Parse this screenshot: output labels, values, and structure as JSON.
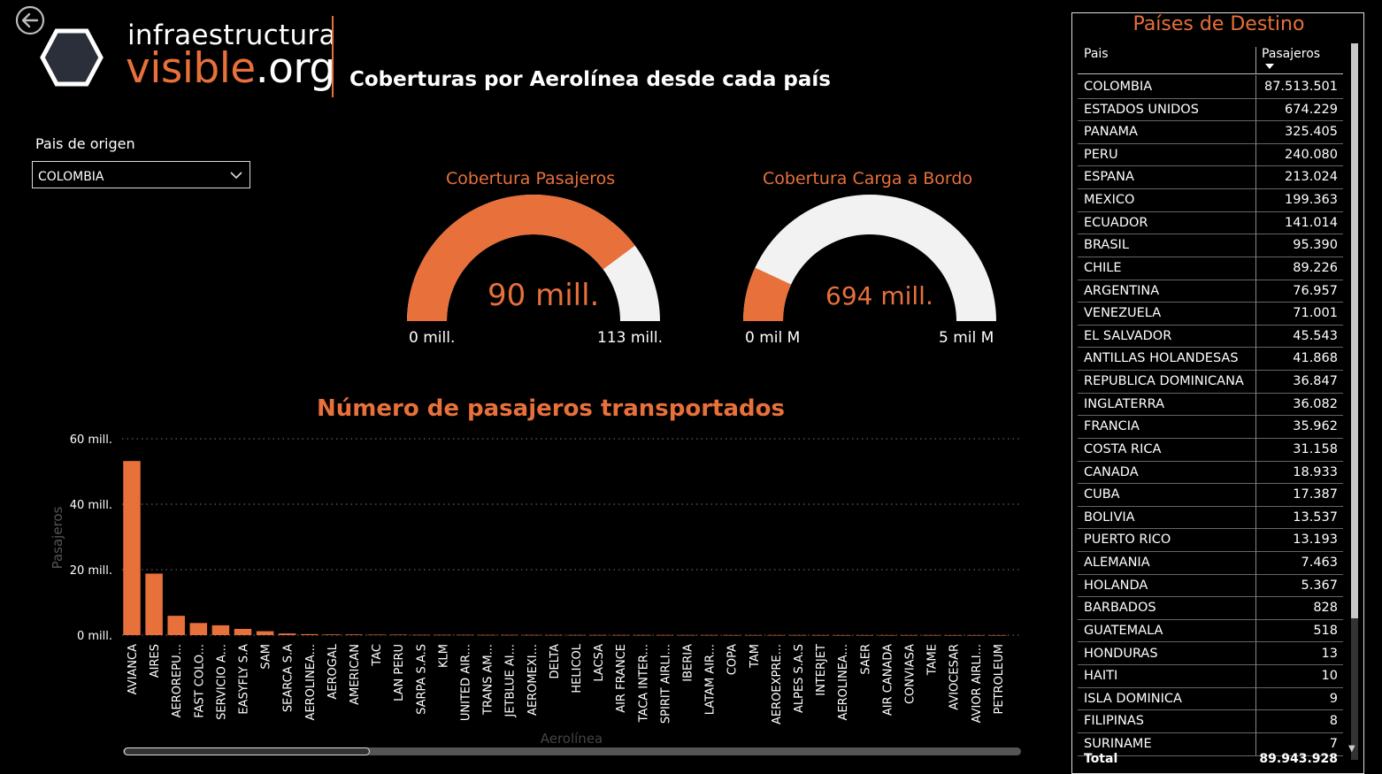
{
  "header": {
    "logo_line1": "infraestructura",
    "logo_line2_a": "visible",
    "logo_line2_b": ".org",
    "title": "Coberturas por Aerolínea desde cada país"
  },
  "filter": {
    "label": "Pais de origen",
    "selected": "COLOMBIA"
  },
  "gauges": [
    {
      "title": "Cobertura Pasajeros",
      "value_label": "90 mill.",
      "min_label": "0 mill.",
      "max_label": "113 mill.",
      "value": 90,
      "max": 113
    },
    {
      "title": "Cobertura Carga a Bordo",
      "value_label": "694 mill.",
      "min_label": "0 mil M",
      "max_label": "5 mil M",
      "value": 0.694,
      "max": 5
    }
  ],
  "colors": {
    "accent": "#e8703a",
    "gauge_bg": "#f2f2f2",
    "grid": "#777777"
  },
  "chart_data": {
    "type": "bar",
    "title": "Número de pasajeros transportados",
    "xlabel": "Aerolínea",
    "ylabel": "Pasajeros",
    "ylim": [
      0,
      60
    ],
    "y_ticks": [
      0,
      20,
      40,
      60
    ],
    "y_tick_labels": [
      "0 mill.",
      "20 mill.",
      "40 mill.",
      "60 mill."
    ],
    "categories": [
      "AVIANCA",
      "AIRES",
      "AEROREPU...",
      "FAST COLO...",
      "SERVICIO A...",
      "EASYFLY S.A",
      "SAM",
      "SEARCA S.A",
      "AEROLINEA...",
      "AEROGAL",
      "AMERICAN",
      "TAC",
      "LAN PERU",
      "SARPA S.A.S",
      "KLM",
      "UNITED AIR...",
      "TRANS AM...",
      "JETBLUE AI...",
      "AEROMEXI...",
      "DELTA",
      "HELICOL",
      "LACSA",
      "AIR FRANCE",
      "TACA INTER...",
      "SPIRIT AIRLI...",
      "IBERIA",
      "LATAM AIR...",
      "COPA",
      "TAM",
      "AEROEXPRE...",
      "ALPES S.A.S",
      "INTERJET",
      "AEROLINEA...",
      "SAER",
      "AIR CANADA",
      "CONVIASA",
      "TAME",
      "AVIOCESAR",
      "AVIOR AIRLI...",
      "PETROLEUM"
    ],
    "values": [
      53.2,
      18.8,
      5.9,
      3.7,
      3.0,
      1.9,
      1.2,
      0.5,
      0.3,
      0.2,
      0.2,
      0.15,
      0.15,
      0.1,
      0.1,
      0.1,
      0.08,
      0.08,
      0.07,
      0.06,
      0.06,
      0.05,
      0.05,
      0.05,
      0.04,
      0.04,
      0.04,
      0.03,
      0.03,
      0.03,
      0.03,
      0.02,
      0.02,
      0.02,
      0.02,
      0.02,
      0.02,
      0.01,
      0.01,
      0.01
    ]
  },
  "table": {
    "title": "Países de Destino",
    "col1": "Pais",
    "col2": "Pasajeros",
    "rows": [
      {
        "pais": "COLOMBIA",
        "pasajeros": "87.513.501"
      },
      {
        "pais": "ESTADOS UNIDOS",
        "pasajeros": "674.229"
      },
      {
        "pais": "PANAMA",
        "pasajeros": "325.405"
      },
      {
        "pais": "PERU",
        "pasajeros": "240.080"
      },
      {
        "pais": "ESPANA",
        "pasajeros": "213.024"
      },
      {
        "pais": "MEXICO",
        "pasajeros": "199.363"
      },
      {
        "pais": "ECUADOR",
        "pasajeros": "141.014"
      },
      {
        "pais": "BRASIL",
        "pasajeros": "95.390"
      },
      {
        "pais": "CHILE",
        "pasajeros": "89.226"
      },
      {
        "pais": "ARGENTINA",
        "pasajeros": "76.957"
      },
      {
        "pais": "VENEZUELA",
        "pasajeros": "71.001"
      },
      {
        "pais": "EL SALVADOR",
        "pasajeros": "45.543"
      },
      {
        "pais": "ANTILLAS HOLANDESAS",
        "pasajeros": "41.868"
      },
      {
        "pais": "REPUBLICA DOMINICANA",
        "pasajeros": "36.847"
      },
      {
        "pais": "INGLATERRA",
        "pasajeros": "36.082"
      },
      {
        "pais": "FRANCIA",
        "pasajeros": "35.962"
      },
      {
        "pais": "COSTA RICA",
        "pasajeros": "31.158"
      },
      {
        "pais": "CANADA",
        "pasajeros": "18.933"
      },
      {
        "pais": "CUBA",
        "pasajeros": "17.387"
      },
      {
        "pais": "BOLIVIA",
        "pasajeros": "13.537"
      },
      {
        "pais": "PUERTO RICO",
        "pasajeros": "13.193"
      },
      {
        "pais": "ALEMANIA",
        "pasajeros": "7.463"
      },
      {
        "pais": "HOLANDA",
        "pasajeros": "5.367"
      },
      {
        "pais": "BARBADOS",
        "pasajeros": "828"
      },
      {
        "pais": "GUATEMALA",
        "pasajeros": "518"
      },
      {
        "pais": "HONDURAS",
        "pasajeros": "13"
      },
      {
        "pais": "HAITI",
        "pasajeros": "10"
      },
      {
        "pais": "ISLA DOMINICA",
        "pasajeros": "9"
      },
      {
        "pais": "FILIPINAS",
        "pasajeros": "8"
      },
      {
        "pais": "SURINAME",
        "pasajeros": "7"
      }
    ],
    "total_label": "Total",
    "total_value": "89.943.928"
  }
}
